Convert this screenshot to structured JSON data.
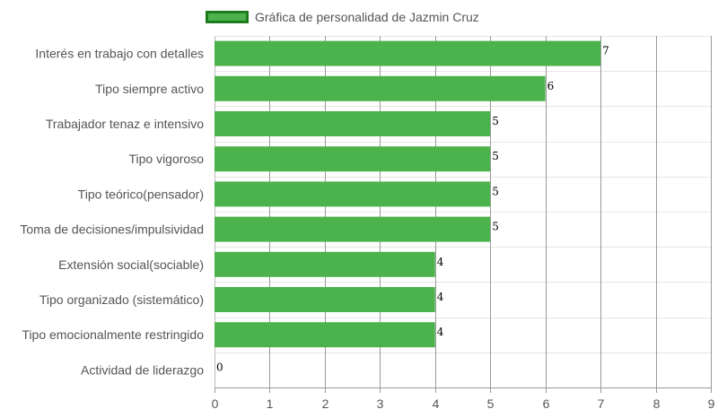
{
  "colors": {
    "bar": "#4cb34c",
    "legend_border": "#1e7b1e",
    "grid": "#cccccc",
    "text": "#555555"
  },
  "chart_data": {
    "type": "bar",
    "orientation": "horizontal",
    "legend": {
      "label": "Gráfica de personalidad de Jazmin Cruz",
      "position": "top-left"
    },
    "categories": [
      "Interés en trabajo con detalles",
      "Tipo siempre activo",
      "Trabajador tenaz e intensivo",
      "Tipo vigoroso",
      "Tipo teórico(pensador)",
      "Toma de decisiones/impulsividad",
      "Extensión social(sociable)",
      "Tipo organizado (sistemático)",
      "Tipo emocionalmente restringido",
      "Actividad de liderazgo"
    ],
    "series": [
      {
        "name": "Gráfica de personalidad de Jazmin Cruz",
        "values": [
          7,
          6,
          5,
          5,
          5,
          5,
          4,
          4,
          4,
          0
        ]
      }
    ],
    "xlim": [
      0,
      9
    ],
    "xticks": [
      "0",
      "1",
      "2",
      "3",
      "4",
      "5",
      "6",
      "7",
      "8",
      "9"
    ],
    "grid": true
  }
}
